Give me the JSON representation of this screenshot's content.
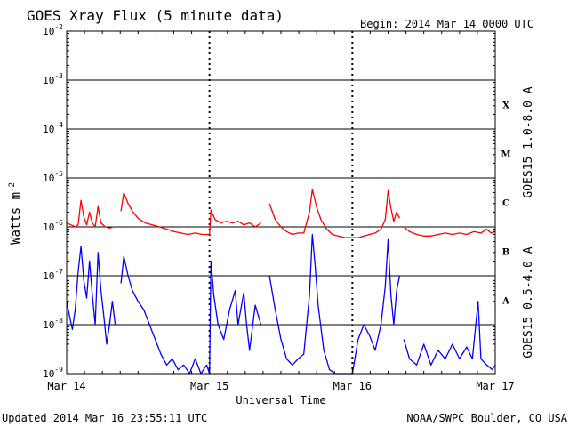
{
  "header": {
    "title": "GOES Xray Flux (5 minute data)",
    "begin": "Begin:  2014 Mar 14 0000 UTC"
  },
  "footer": {
    "updated": "Updated 2014 Mar 16 23:55:11 UTC",
    "source": "NOAA/SWPC Boulder, CO USA"
  },
  "colors": {
    "long_channel": "#ff0000",
    "short_channel": "#0000ff",
    "grid": "#000000"
  },
  "chart_data": {
    "type": "line",
    "title": "GOES Xray Flux (5 minute data)",
    "xlabel": "Universal Time",
    "ylabel": "Watts m",
    "ylabel_superscript": "-2",
    "yscale": "log",
    "ylim": [
      1e-09,
      0.01
    ],
    "yticks": [
      {
        "base": "10",
        "exp": "-9",
        "value": 1e-09
      },
      {
        "base": "10",
        "exp": "-8",
        "value": 1e-08
      },
      {
        "base": "10",
        "exp": "-7",
        "value": 1e-07
      },
      {
        "base": "10",
        "exp": "-6",
        "value": 1e-06
      },
      {
        "base": "10",
        "exp": "-5",
        "value": 1e-05
      },
      {
        "base": "10",
        "exp": "-4",
        "value": 0.0001
      },
      {
        "base": "10",
        "exp": "-3",
        "value": 0.001
      },
      {
        "base": "10",
        "exp": "-2",
        "value": 0.01
      }
    ],
    "xticks": [
      {
        "label": "Mar 14",
        "day": 0
      },
      {
        "label": "Mar 15",
        "day": 1
      },
      {
        "label": "Mar 16",
        "day": 2
      },
      {
        "label": "Mar 17",
        "day": 3
      }
    ],
    "xlim": [
      0,
      3
    ],
    "flare_classes": [
      {
        "label": "A",
        "value": 1e-08
      },
      {
        "label": "B",
        "value": 1e-07
      },
      {
        "label": "C",
        "value": 1e-06
      },
      {
        "label": "M",
        "value": 1e-05
      },
      {
        "label": "X",
        "value": 0.0001
      }
    ],
    "series": [
      {
        "name": "GOES15 1.0-8.0 A",
        "color": "#ff0000",
        "points": [
          [
            0.0,
            1.2e-06
          ],
          [
            0.03,
            1.1e-06
          ],
          [
            0.06,
            1e-06
          ],
          [
            0.08,
            1.1e-06
          ],
          [
            0.1,
            3.5e-06
          ],
          [
            0.12,
            1.6e-06
          ],
          [
            0.14,
            1.1e-06
          ],
          [
            0.16,
            2e-06
          ],
          [
            0.18,
            1.2e-06
          ],
          [
            0.2,
            1e-06
          ],
          [
            0.22,
            2.6e-06
          ],
          [
            0.24,
            1.2e-06
          ],
          [
            0.27,
            1e-06
          ],
          [
            0.3,
            9.5e-07
          ],
          [
            0.33,
            1e-06
          ],
          [
            null,
            null
          ],
          [
            0.38,
            2.1e-06
          ],
          [
            0.4,
            5e-06
          ],
          [
            0.43,
            3e-06
          ],
          [
            0.46,
            2.1e-06
          ],
          [
            0.5,
            1.5e-06
          ],
          [
            0.55,
            1.2e-06
          ],
          [
            0.6,
            1.1e-06
          ],
          [
            0.65,
            1e-06
          ],
          [
            0.7,
            9e-07
          ],
          [
            0.75,
            8e-07
          ],
          [
            0.8,
            7.5e-07
          ],
          [
            0.85,
            7e-07
          ],
          [
            0.9,
            7.5e-07
          ],
          [
            0.95,
            7e-07
          ],
          [
            1.0,
            7e-07
          ],
          [
            1.01,
            2.2e-06
          ],
          [
            1.04,
            1.4e-06
          ],
          [
            1.08,
            1.2e-06
          ],
          [
            1.12,
            1.3e-06
          ],
          [
            1.16,
            1.2e-06
          ],
          [
            1.2,
            1.3e-06
          ],
          [
            1.24,
            1.1e-06
          ],
          [
            1.28,
            1.2e-06
          ],
          [
            1.32,
            1e-06
          ],
          [
            1.36,
            1.2e-06
          ],
          [
            null,
            null
          ],
          [
            1.42,
            3e-06
          ],
          [
            1.46,
            1.4e-06
          ],
          [
            1.5,
            1e-06
          ],
          [
            1.54,
            8e-07
          ],
          [
            1.58,
            7e-07
          ],
          [
            1.62,
            7.5e-07
          ],
          [
            1.66,
            7.5e-07
          ],
          [
            1.7,
            2e-06
          ],
          [
            1.72,
            5.8e-06
          ],
          [
            1.75,
            2.5e-06
          ],
          [
            1.78,
            1.4e-06
          ],
          [
            1.82,
            9e-07
          ],
          [
            1.86,
            7e-07
          ],
          [
            1.9,
            6.5e-07
          ],
          [
            1.95,
            6e-07
          ],
          [
            2.0,
            6e-07
          ],
          [
            2.04,
            6e-07
          ],
          [
            2.08,
            6.5e-07
          ],
          [
            2.12,
            7e-07
          ],
          [
            2.16,
            7.5e-07
          ],
          [
            2.2,
            9e-07
          ],
          [
            2.23,
            1.4e-06
          ],
          [
            2.25,
            5.5e-06
          ],
          [
            2.27,
            2.4e-06
          ],
          [
            2.29,
            1.3e-06
          ],
          [
            2.31,
            2e-06
          ],
          [
            2.33,
            1.5e-06
          ],
          [
            null,
            null
          ],
          [
            2.36,
            1e-06
          ],
          [
            2.4,
            8e-07
          ],
          [
            2.45,
            7e-07
          ],
          [
            2.5,
            6.5e-07
          ],
          [
            2.55,
            6.5e-07
          ],
          [
            2.6,
            7e-07
          ],
          [
            2.65,
            7.5e-07
          ],
          [
            2.7,
            7e-07
          ],
          [
            2.75,
            7.5e-07
          ],
          [
            2.8,
            7e-07
          ],
          [
            2.85,
            8e-07
          ],
          [
            2.9,
            7.5e-07
          ],
          [
            2.94,
            9e-07
          ],
          [
            2.97,
            7.5e-07
          ],
          [
            3.0,
            8e-07
          ]
        ]
      },
      {
        "name": "GOES15 0.5-4.0 A",
        "color": "#0000ff",
        "points": [
          [
            0.0,
            3e-08
          ],
          [
            0.02,
            1.5e-08
          ],
          [
            0.04,
            8e-09
          ],
          [
            0.06,
            2e-08
          ],
          [
            0.08,
            1.2e-07
          ],
          [
            0.1,
            4e-07
          ],
          [
            0.12,
            8e-08
          ],
          [
            0.14,
            3.5e-08
          ],
          [
            0.16,
            2e-07
          ],
          [
            0.18,
            4e-08
          ],
          [
            0.2,
            1e-08
          ],
          [
            0.22,
            3e-07
          ],
          [
            0.24,
            5e-08
          ],
          [
            0.26,
            1.5e-08
          ],
          [
            0.28,
            4e-09
          ],
          [
            0.3,
            1e-08
          ],
          [
            0.32,
            3e-08
          ],
          [
            0.34,
            1e-08
          ],
          [
            null,
            null
          ],
          [
            0.38,
            7e-08
          ],
          [
            0.4,
            2.5e-07
          ],
          [
            0.43,
            1e-07
          ],
          [
            0.46,
            5e-08
          ],
          [
            0.5,
            3e-08
          ],
          [
            0.54,
            2e-08
          ],
          [
            0.58,
            1e-08
          ],
          [
            0.62,
            5e-09
          ],
          [
            0.66,
            2.5e-09
          ],
          [
            0.7,
            1.5e-09
          ],
          [
            0.74,
            2e-09
          ],
          [
            0.78,
            1.2e-09
          ],
          [
            0.82,
            1.5e-09
          ],
          [
            0.86,
            1e-09
          ],
          [
            0.9,
            2e-09
          ],
          [
            0.94,
            1e-09
          ],
          [
            0.98,
            1.5e-09
          ],
          [
            1.0,
            1e-09
          ],
          [
            1.01,
            2e-07
          ],
          [
            1.03,
            4e-08
          ],
          [
            1.06,
            1e-08
          ],
          [
            1.1,
            5e-09
          ],
          [
            1.14,
            2e-08
          ],
          [
            1.18,
            5e-08
          ],
          [
            1.2,
            1e-08
          ],
          [
            1.24,
            4.5e-08
          ],
          [
            1.26,
            1e-08
          ],
          [
            1.28,
            3e-09
          ],
          [
            1.32,
            2.5e-08
          ],
          [
            1.36,
            1e-08
          ],
          [
            null,
            null
          ],
          [
            1.42,
            1e-07
          ],
          [
            1.46,
            2e-08
          ],
          [
            1.5,
            5e-09
          ],
          [
            1.54,
            2e-09
          ],
          [
            1.58,
            1.5e-09
          ],
          [
            1.62,
            2e-09
          ],
          [
            1.66,
            2.5e-09
          ],
          [
            1.7,
            4e-08
          ],
          [
            1.72,
            7e-07
          ],
          [
            1.74,
            1.5e-07
          ],
          [
            1.76,
            2.5e-08
          ],
          [
            1.8,
            3e-09
          ],
          [
            1.84,
            1.2e-09
          ],
          [
            1.88,
            1e-09
          ],
          [
            1.92,
            1e-09
          ],
          [
            1.96,
            1e-09
          ],
          [
            2.0,
            1e-09
          ],
          [
            2.04,
            5e-09
          ],
          [
            2.08,
            1e-08
          ],
          [
            2.12,
            6e-09
          ],
          [
            2.16,
            3e-09
          ],
          [
            2.2,
            1e-08
          ],
          [
            2.23,
            6e-08
          ],
          [
            2.25,
            5.5e-07
          ],
          [
            2.27,
            4e-08
          ],
          [
            2.29,
            1e-08
          ],
          [
            2.31,
            5e-08
          ],
          [
            2.33,
            1e-07
          ],
          [
            null,
            null
          ],
          [
            2.36,
            5e-09
          ],
          [
            2.4,
            2e-09
          ],
          [
            2.45,
            1.5e-09
          ],
          [
            2.5,
            4e-09
          ],
          [
            2.55,
            1.5e-09
          ],
          [
            2.6,
            3e-09
          ],
          [
            2.65,
            2e-09
          ],
          [
            2.7,
            4e-09
          ],
          [
            2.75,
            2e-09
          ],
          [
            2.8,
            3.5e-09
          ],
          [
            2.84,
            2e-09
          ],
          [
            2.88,
            3e-08
          ],
          [
            2.9,
            2e-09
          ],
          [
            2.94,
            1.5e-09
          ],
          [
            2.98,
            1.2e-09
          ],
          [
            3.0,
            1.5e-09
          ]
        ]
      }
    ]
  }
}
